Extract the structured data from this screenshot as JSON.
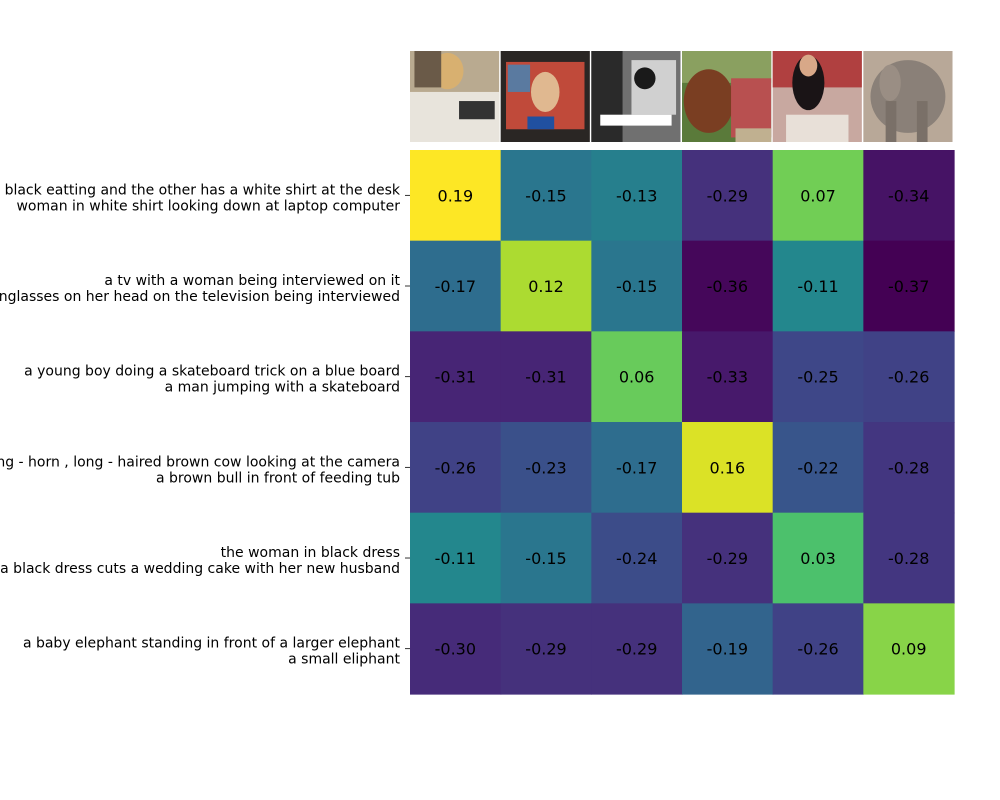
{
  "chart_data": {
    "type": "heatmap",
    "row_labels": [
      [
        "woman in black eatting and the other has a white shirt at the desk",
        "woman in white shirt looking down at laptop computer"
      ],
      [
        "a tv with a woman being interviewed on it",
        "a woman with sunglasses on her head on the television being interviewed"
      ],
      [
        "a young boy doing a skateboard trick on a blue board",
        "a man jumping with a skateboard"
      ],
      [
        "a long - horn , long - haired brown cow looking at the camera",
        "a brown bull in front of feeding tub"
      ],
      [
        "the woman in black dress",
        "a woman in a black dress cuts a wedding cake with her new husband"
      ],
      [
        "a baby elephant standing in front of a larger elephant",
        "a small eliphant"
      ]
    ],
    "column_images": [
      "woman-at-laptop-image",
      "tv-interview-image",
      "skateboard-image",
      "brown-cow-image",
      "wedding-cake-image",
      "elephant-image"
    ],
    "values": [
      [
        0.19,
        -0.15,
        -0.13,
        -0.29,
        0.07,
        -0.34
      ],
      [
        -0.17,
        0.12,
        -0.15,
        -0.36,
        -0.11,
        -0.37
      ],
      [
        -0.31,
        -0.31,
        0.06,
        -0.33,
        -0.25,
        -0.26
      ],
      [
        -0.26,
        -0.23,
        -0.17,
        0.16,
        -0.22,
        -0.28
      ],
      [
        -0.11,
        -0.15,
        -0.24,
        -0.29,
        0.03,
        -0.28
      ],
      [
        -0.3,
        -0.29,
        -0.29,
        -0.19,
        -0.26,
        0.09
      ]
    ],
    "value_labels": [
      [
        "0.19",
        "-0.15",
        "-0.13",
        "-0.29",
        "0.07",
        "-0.34"
      ],
      [
        "-0.17",
        "0.12",
        "-0.15",
        "-0.36",
        "-0.11",
        "-0.37"
      ],
      [
        "-0.31",
        "-0.31",
        "0.06",
        "-0.33",
        "-0.25",
        "-0.26"
      ],
      [
        "-0.26",
        "-0.23",
        "-0.17",
        "0.16",
        "-0.22",
        "-0.28"
      ],
      [
        "-0.11",
        "-0.15",
        "-0.24",
        "-0.29",
        "0.03",
        "-0.28"
      ],
      [
        "-0.30",
        "-0.29",
        "-0.29",
        "-0.19",
        "-0.26",
        "0.09"
      ]
    ],
    "colormap": "viridis",
    "color_range": [
      -0.37,
      0.19
    ],
    "grid": false,
    "colorbar": false
  }
}
